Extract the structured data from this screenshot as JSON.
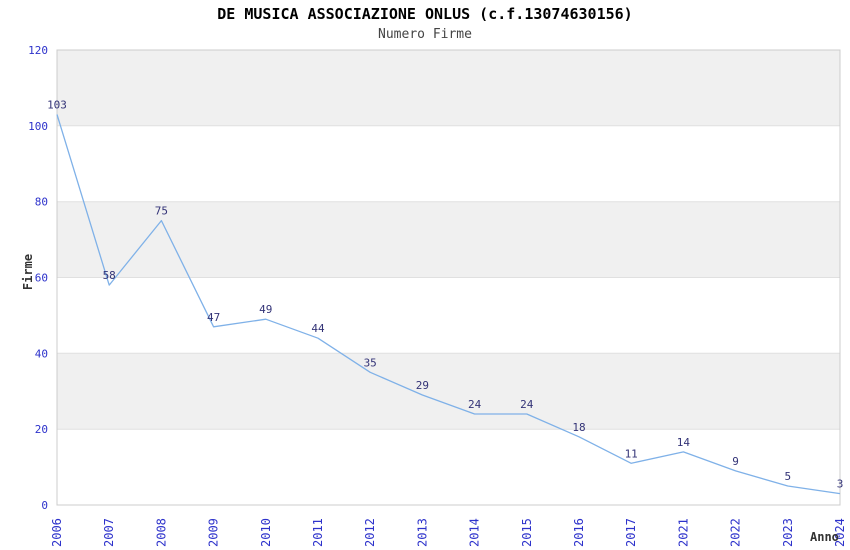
{
  "chart_data": {
    "type": "line",
    "title": "DE MUSICA ASSOCIAZIONE ONLUS (c.f.13074630156)",
    "subtitle": "Numero Firme",
    "xlabel": "Anno",
    "ylabel": "Firme",
    "categories": [
      "2006",
      "2007",
      "2008",
      "2009",
      "2010",
      "2011",
      "2012",
      "2013",
      "2014",
      "2015",
      "2016",
      "2017",
      "2021",
      "2022",
      "2023",
      "2024"
    ],
    "values": [
      103,
      58,
      75,
      47,
      49,
      44,
      35,
      29,
      24,
      24,
      18,
      11,
      14,
      9,
      5,
      3
    ],
    "ylim": [
      0,
      120
    ],
    "yticks": [
      0,
      20,
      40,
      60,
      80,
      100,
      120
    ],
    "grid": "horizontal-bands",
    "legend_position": "none",
    "point_labels_visible": true,
    "point_markers": false,
    "colors": {
      "line": "#7FB1E8",
      "point_label": "#333377",
      "tick_label": "#2D32CB",
      "axis_title": "#333333",
      "band_light": "#F0F0F0",
      "band_white": "#FFFFFF",
      "gridline": "#E0E0E0",
      "plot_border": "#CCCCCC",
      "title": "#000000",
      "subtitle": "#444444"
    }
  }
}
